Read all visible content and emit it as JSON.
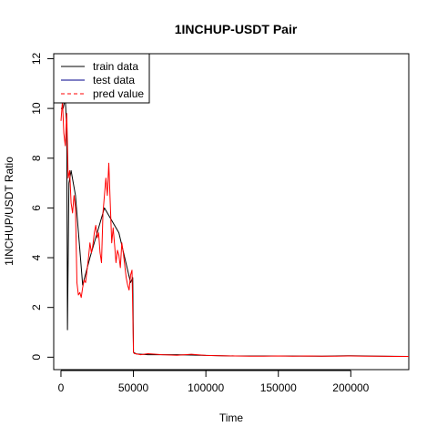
{
  "chart_data": {
    "type": "line",
    "title": "1INCHUP-USDT Pair",
    "xlabel": "Time",
    "ylabel": "1INCHUP/USDT  Ratio",
    "xlim": [
      -5000,
      240000
    ],
    "ylim": [
      -0.5,
      12.2
    ],
    "x_ticks": [
      0,
      50000,
      100000,
      150000,
      200000
    ],
    "x_tick_labels": [
      "0",
      "50000",
      "100000",
      "150000",
      "200000"
    ],
    "y_ticks": [
      0,
      2,
      4,
      6,
      8,
      10,
      12
    ],
    "y_tick_labels": [
      "0",
      "2",
      "4",
      "6",
      "8",
      "10",
      "12"
    ],
    "grid": false,
    "legend": {
      "position": "top-left",
      "entries": [
        {
          "label": "train data",
          "color": "#000000",
          "dash": "solid"
        },
        {
          "label": "test data",
          "color": "#00008b",
          "dash": "solid"
        },
        {
          "label": "pred value",
          "color": "#ff0000",
          "dash": "dashed"
        }
      ]
    },
    "series": [
      {
        "name": "train data",
        "color": "#000000",
        "x": [
          0,
          1500,
          3000,
          4000,
          4500,
          5500,
          7000,
          10000,
          15000,
          20000,
          30000,
          40000,
          48000,
          49500,
          50000,
          52000,
          60000,
          80000,
          100000,
          120000,
          150000,
          180000,
          200000,
          220000,
          240000
        ],
        "y": [
          10.0,
          10.0,
          10.4,
          9.2,
          1.1,
          7.0,
          7.5,
          6.5,
          2.9,
          4.0,
          6.0,
          5.0,
          3.0,
          3.2,
          0.2,
          0.13,
          0.1,
          0.1,
          0.07,
          0.05,
          0.05,
          0.04,
          0.06,
          0.04,
          0.03
        ]
      },
      {
        "name": "pred value",
        "color": "#ff0000",
        "x": [
          0,
          1000,
          2000,
          3000,
          4000,
          5000,
          6000,
          7000,
          8000,
          9000,
          10000,
          11000,
          12000,
          13000,
          14000,
          15000,
          16000,
          17000,
          18000,
          19000,
          20000,
          21000,
          22000,
          23000,
          24000,
          25000,
          26000,
          27000,
          28000,
          29000,
          30000,
          31000,
          32000,
          33000,
          34000,
          35000,
          36000,
          37000,
          38000,
          39000,
          40000,
          41000,
          42000,
          43000,
          44000,
          45000,
          46000,
          47000,
          48000,
          49000,
          50000,
          50500,
          55000,
          60000,
          70000,
          80000,
          90000,
          100000,
          110000,
          120000,
          130000,
          140000,
          150000,
          160000,
          170000,
          180000,
          190000,
          200000,
          210000,
          220000,
          230000,
          240000
        ],
        "y": [
          9.5,
          10.3,
          9.0,
          8.5,
          9.8,
          7.2,
          7.5,
          6.2,
          5.8,
          6.5,
          6.0,
          3.0,
          2.5,
          2.6,
          2.4,
          2.8,
          3.1,
          3.0,
          3.5,
          4.0,
          4.6,
          4.2,
          4.5,
          5.0,
          5.3,
          4.8,
          5.0,
          4.2,
          3.8,
          5.8,
          6.5,
          7.2,
          6.5,
          7.8,
          6.2,
          4.6,
          5.2,
          4.5,
          3.8,
          4.3,
          4.1,
          3.6,
          4.6,
          4.2,
          3.7,
          3.2,
          2.9,
          2.7,
          3.3,
          3.5,
          0.2,
          0.15,
          0.1,
          0.14,
          0.1,
          0.08,
          0.12,
          0.07,
          0.06,
          0.05,
          0.04,
          0.04,
          0.05,
          0.04,
          0.05,
          0.04,
          0.04,
          0.05,
          0.04,
          0.04,
          0.03,
          0.03
        ]
      }
    ]
  }
}
